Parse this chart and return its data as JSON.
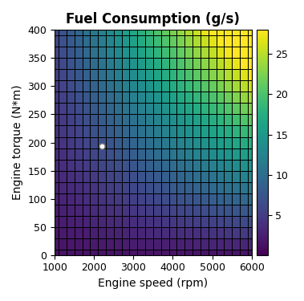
{
  "title": "Fuel Consumption (g/s)",
  "xlabel": "Engine speed (rpm)",
  "ylabel": "Engine torque (N*m)",
  "speed_min": 1000,
  "speed_max": 6000,
  "torque_min": 0,
  "torque_max": 400,
  "n_speed": 26,
  "n_torque": 21,
  "colormap": "viridis",
  "vmin": 0,
  "vmax": 28,
  "colorbar_ticks": [
    5,
    10,
    15,
    20,
    25
  ],
  "marker_x": 2200,
  "marker_y": 193,
  "marker_color": "white",
  "marker_edge_color": "gray",
  "marker_size": 5,
  "grid_color": "black",
  "grid_linewidth": 0.5,
  "title_fontsize": 12,
  "label_fontsize": 10,
  "tick_fontsize": 9,
  "xticks": [
    1000,
    2000,
    3000,
    4000,
    5000,
    6000
  ],
  "yticks": [
    0,
    50,
    100,
    150,
    200,
    250,
    300,
    350,
    400
  ]
}
